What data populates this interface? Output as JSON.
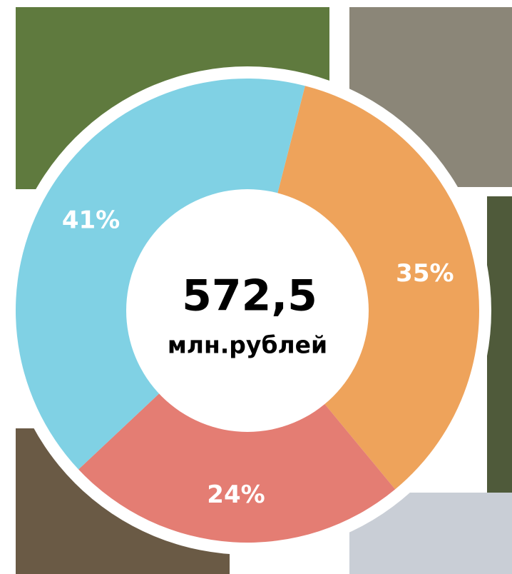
{
  "chart_data": {
    "type": "pie",
    "donut": true,
    "center_value": "572,5",
    "center_unit": "млн.рублей",
    "categories": [
      null,
      null,
      null
    ],
    "values": [
      35,
      24,
      41
    ],
    "value_labels": [
      "35%",
      "24%",
      "41%"
    ],
    "colors": [
      "#eea35b",
      "#e47d73",
      "#80d1e4"
    ]
  }
}
